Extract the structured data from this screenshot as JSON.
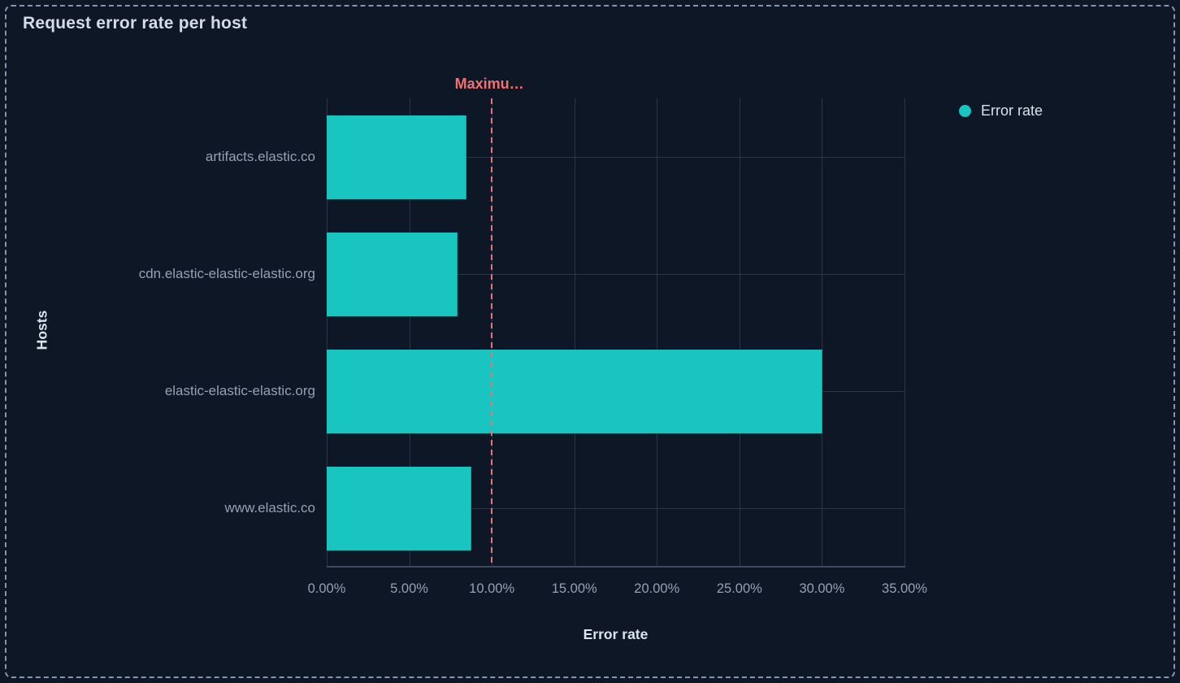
{
  "panel": {
    "title": "Request error rate per host"
  },
  "legend": {
    "position": "right",
    "items": [
      {
        "label": "Error rate",
        "color": "#18c5c0"
      }
    ]
  },
  "chart_data": {
    "type": "bar",
    "orientation": "horizontal",
    "title": "Request error rate per host",
    "categories": [
      "artifacts.elastic.co",
      "cdn.elastic-elastic-elastic.org",
      "elastic-elastic-elastic.org",
      "www.elastic.co"
    ],
    "series": [
      {
        "name": "Error rate",
        "values": [
          8.4,
          7.9,
          30.0,
          8.7
        ]
      }
    ],
    "value_unit": "%",
    "xlabel": "Error rate",
    "ylabel": "Hosts",
    "xlim": [
      0,
      35
    ],
    "xticks": [
      "0.00%",
      "5.00%",
      "10.00%",
      "15.00%",
      "20.00%",
      "25.00%",
      "30.00%",
      "35.00%"
    ],
    "xtick_values": [
      0,
      5,
      10,
      15,
      20,
      25,
      30,
      35
    ],
    "grid": true,
    "legend_position": "right",
    "annotation": {
      "label": "Maximu…",
      "value": 10,
      "style": "dashed",
      "color": "#f2706f"
    }
  },
  "colors": {
    "background": "#0d1726",
    "panel_border": "#8496b2",
    "bar": "#18c5c0",
    "threshold": "#f2706f",
    "gridline": "#2a3549",
    "axis_line": "#3d4a5f",
    "tick_text": "#93a0b4",
    "title_text": "#d5dce7"
  }
}
